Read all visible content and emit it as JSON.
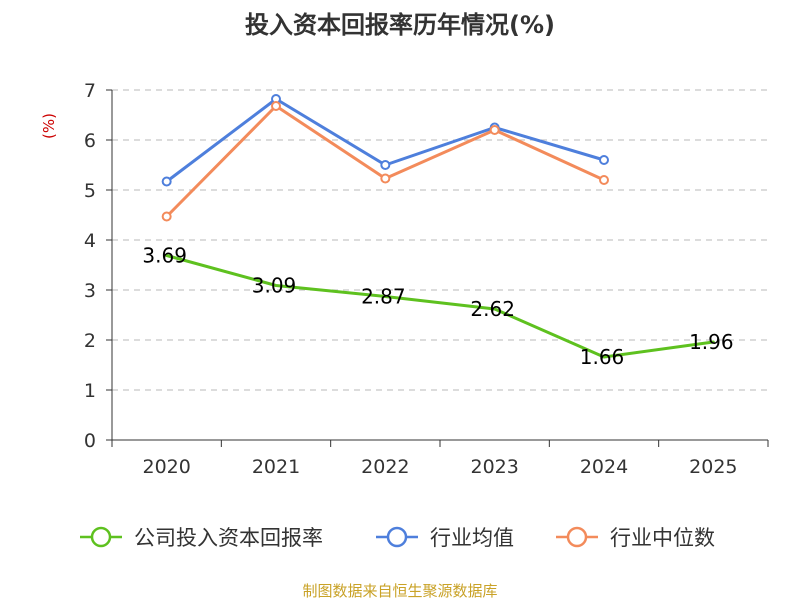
{
  "chart_data": {
    "type": "line",
    "title": "投入资本回报率历年情况(%)",
    "ylabel": "(%)",
    "xlabel": "",
    "categories": [
      "2020",
      "2021",
      "2022",
      "2023",
      "2024",
      "2025"
    ],
    "ylim": [
      0,
      7
    ],
    "yticks": [
      "0",
      "1",
      "2",
      "3",
      "4",
      "5",
      "6",
      "7"
    ],
    "grid": true,
    "series": [
      {
        "name": "公司投入资本回报率",
        "color": "#5ec11f",
        "values": [
          3.69,
          3.09,
          2.87,
          2.62,
          1.66,
          1.96
        ],
        "labels": [
          "3.69",
          "3.09",
          "2.87",
          "2.62",
          "1.66",
          "1.96"
        ],
        "markers": false
      },
      {
        "name": "行业均值",
        "color": "#4e7fdc",
        "values": [
          5.17,
          6.82,
          5.5,
          6.25,
          5.6,
          null
        ],
        "markers": true
      },
      {
        "name": "行业中位数",
        "color": "#f38b5b",
        "values": [
          4.47,
          6.68,
          5.23,
          6.2,
          5.2,
          null
        ],
        "markers": true
      }
    ],
    "legend_position": "bottom",
    "source": "制图数据来自恒生聚源数据库"
  }
}
